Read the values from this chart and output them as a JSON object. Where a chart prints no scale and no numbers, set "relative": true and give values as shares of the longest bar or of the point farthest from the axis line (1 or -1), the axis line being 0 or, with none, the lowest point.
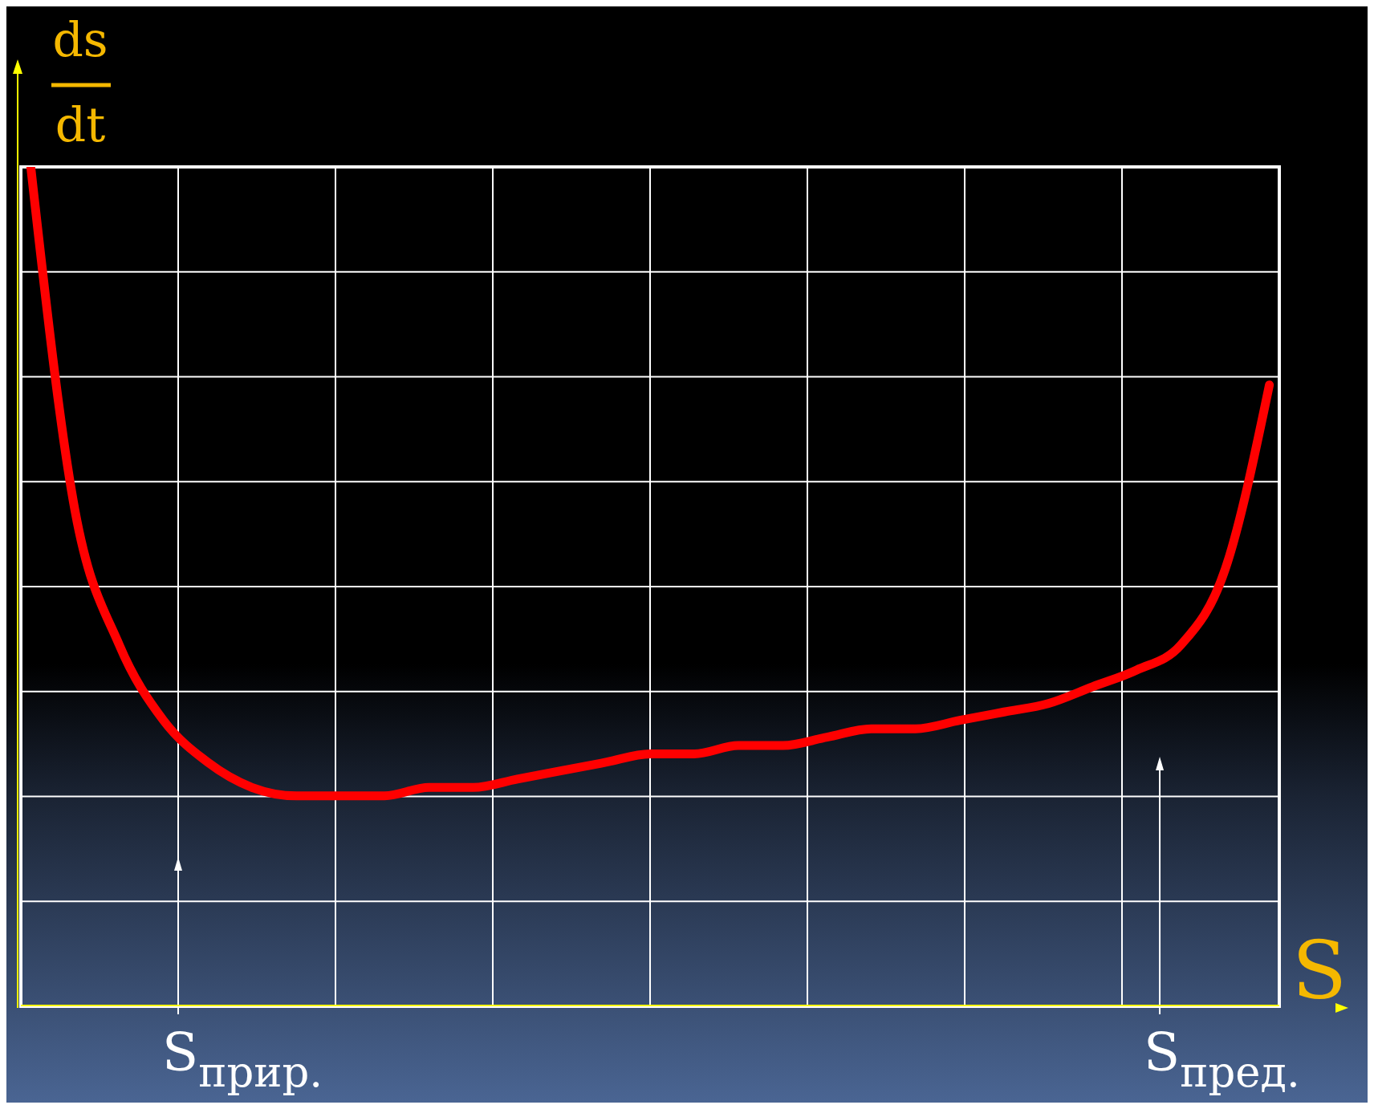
{
  "chart_data": {
    "type": "line",
    "relative": true,
    "xlabel": "S",
    "ylabel": "ds/dt",
    "grid": true,
    "marker": "none",
    "line_style": "solid",
    "categories": [
      null,
      null,
      null,
      null,
      null,
      null,
      null,
      null,
      null,
      null,
      null,
      null,
      null,
      null,
      null,
      null,
      null,
      null,
      null,
      null,
      null,
      null,
      null,
      null,
      null,
      null,
      null,
      null,
      null
    ],
    "series": [
      {
        "color": "#ff0000",
        "values": [
          1.0,
          0.59,
          0.43,
          0.34,
          0.29,
          0.26,
          0.25,
          0.25,
          0.25,
          0.26,
          0.26,
          0.27,
          0.28,
          0.29,
          0.3,
          0.3,
          0.31,
          0.31,
          0.32,
          0.33,
          0.33,
          0.34,
          0.35,
          0.36,
          0.38,
          0.4,
          0.43,
          0.52,
          0.74
        ]
      }
    ],
    "annotations": [
      "S$_{прир.}$",
      "S$_{пред.}$"
    ]
  }
}
